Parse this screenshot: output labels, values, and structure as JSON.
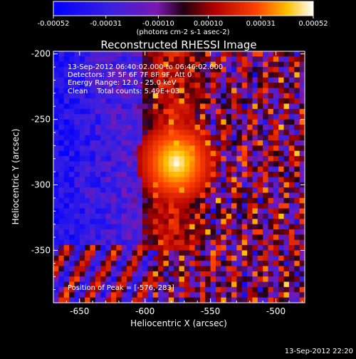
{
  "chart_data": {
    "type": "heatmap",
    "title": "Reconstructed RHESSI Image",
    "xlabel": "Heliocentric X (arcsec)",
    "ylabel": "Heliocentric Y (arcsec)",
    "xlim": [
      -670,
      -478
    ],
    "ylim": [
      -390,
      -198
    ],
    "xticks": [
      -650,
      -600,
      -550,
      -500
    ],
    "yticks": [
      -200,
      -250,
      -300,
      -350
    ],
    "colorbar": {
      "label": "(photons cm-2 s-1 asec-2)",
      "ticks": [
        "-0.00052",
        "-0.00031",
        "-0.00010",
        "0.00010",
        "0.00031",
        "0.00052"
      ],
      "range": [
        -0.00052,
        0.00052
      ]
    },
    "annotations": [
      "13-Sep-2012 06:40:02.000 to 06:46:02.000",
      "Detectors: 3F 5F 6F 7F 8F 9F, Att 0",
      "Energy Range: 12.0 - 25.0 keV",
      "Clean    Total counts: 5.49E+03"
    ],
    "peak_label": "Position of Peak = [-576,-283]",
    "peak": [
      -576,
      -283
    ],
    "peak_value": 0.00052,
    "timestamp": "13-Sep-2012 22:20"
  }
}
